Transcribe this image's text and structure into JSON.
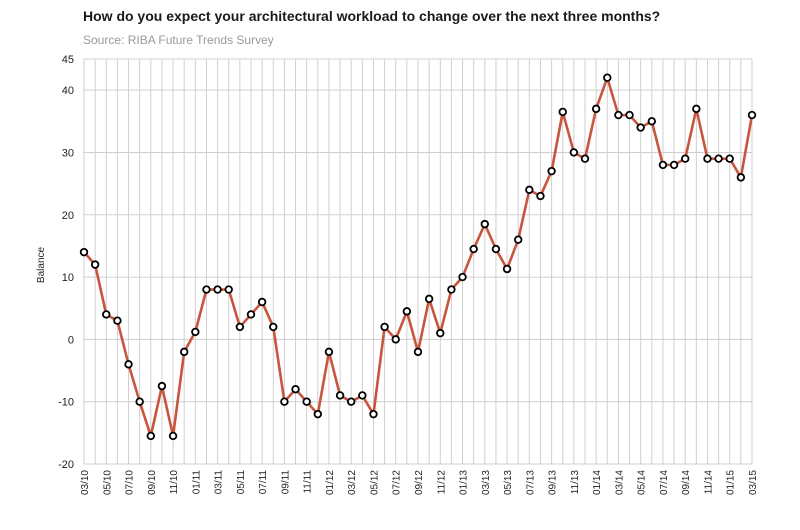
{
  "chart_data": {
    "type": "line",
    "title": "How do you expect your architectural workload to change over the next three months?",
    "subtitle": "Source: RIBA Future Trends Survey",
    "ylabel": "Balance",
    "xlabel": "",
    "ylim": [
      -20,
      45
    ],
    "yticks": [
      -20,
      -10,
      0,
      10,
      20,
      30,
      40,
      45
    ],
    "grid": true,
    "x": [
      "03/10",
      "04/10",
      "05/10",
      "06/10",
      "07/10",
      "08/10",
      "09/10",
      "10/10",
      "11/10",
      "12/10",
      "01/11",
      "02/11",
      "03/11",
      "04/11",
      "05/11",
      "06/11",
      "07/11",
      "08/11",
      "09/11",
      "10/11",
      "11/11",
      "12/11",
      "01/12",
      "02/12",
      "03/12",
      "04/12",
      "05/12",
      "06/12",
      "07/12",
      "08/12",
      "09/12",
      "10/12",
      "11/12",
      "12/12",
      "01/13",
      "02/13",
      "03/13",
      "04/13",
      "05/13",
      "06/13",
      "07/13",
      "08/13",
      "09/13",
      "10/13",
      "11/13",
      "12/13",
      "01/14",
      "02/14",
      "03/14",
      "04/14",
      "05/14",
      "06/14",
      "07/14",
      "08/14",
      "09/14",
      "10/14",
      "11/14",
      "12/14",
      "01/15",
      "02/15",
      "03/15"
    ],
    "xtick_labels": [
      "03/10",
      "05/10",
      "07/10",
      "09/10",
      "11/10",
      "01/11",
      "03/11",
      "05/11",
      "07/11",
      "09/11",
      "11/11",
      "01/12",
      "03/12",
      "05/12",
      "07/12",
      "09/12",
      "11/12",
      "01/13",
      "03/13",
      "05/13",
      "07/13",
      "09/13",
      "11/13",
      "01/14",
      "03/14",
      "05/14",
      "07/14",
      "09/14",
      "11/14",
      "01/15",
      "03/15"
    ],
    "series": [
      {
        "values": [
          14,
          12,
          4,
          3,
          -4,
          -10,
          -15.5,
          -7.5,
          -15.5,
          -2,
          1.2,
          8,
          8,
          8,
          2,
          4,
          6,
          2,
          -10,
          -8,
          -10,
          -12,
          -2,
          -9,
          -10,
          -9,
          -12,
          2,
          0,
          4.5,
          -2,
          6.5,
          1,
          8,
          10,
          14.5,
          18.5,
          14.5,
          11.3,
          16,
          24,
          23,
          27,
          36.5,
          30,
          29,
          37,
          42,
          36,
          36,
          34,
          35,
          28,
          28,
          29,
          37,
          29,
          29,
          29,
          26,
          36
        ]
      }
    ],
    "colors": {
      "line": "#c8553d",
      "marker_fill": "#ffffff",
      "marker_stroke": "#000000",
      "grid": "#cfcfcf"
    }
  }
}
